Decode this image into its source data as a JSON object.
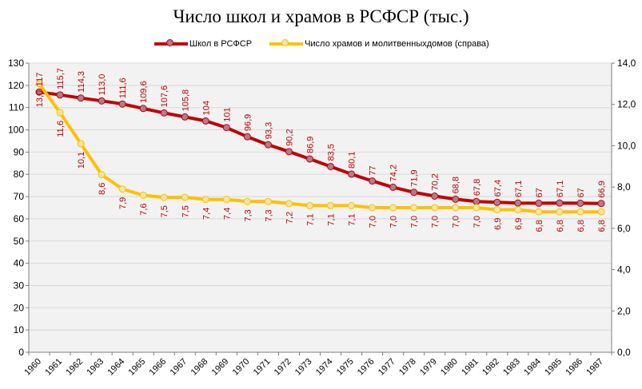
{
  "chart_data": {
    "type": "line",
    "title": "Число школ и храмов в РСФСР (тыс.)",
    "legend_position": "top",
    "grid": true,
    "categories": [
      "1960",
      "1961",
      "1962",
      "1963",
      "1964",
      "1965",
      "1966",
      "1967",
      "1968",
      "1969",
      "1970",
      "1971",
      "1972",
      "1973",
      "1974",
      "1975",
      "1976",
      "1977",
      "1978",
      "1979",
      "1980",
      "1981",
      "1982",
      "1983",
      "1984",
      "1985",
      "1986",
      "1987"
    ],
    "y_left": {
      "min": 0,
      "max": 130,
      "step": 10,
      "ticks": [
        "0",
        "10",
        "20",
        "30",
        "40",
        "50",
        "60",
        "70",
        "80",
        "90",
        "100",
        "110",
        "120",
        "130"
      ]
    },
    "y_right": {
      "min": 0,
      "max": 14,
      "step": 2,
      "ticks": [
        "0,0",
        "2,0",
        "4,0",
        "6,0",
        "8,0",
        "10,0",
        "12,0",
        "14,0"
      ]
    },
    "series": [
      {
        "name": "Школ в РСФСР",
        "axis": "left",
        "color": "#C00000",
        "marker_color": "#B47A90",
        "values": [
          117,
          115.7,
          114.3,
          113.0,
          111.6,
          109.6,
          107.6,
          105.8,
          104,
          101,
          96.9,
          93.3,
          90.2,
          86.9,
          83.5,
          80.1,
          77,
          74.2,
          71.9,
          70.2,
          68.8,
          67.8,
          67.4,
          67.1,
          67,
          67.1,
          67,
          66.9
        ],
        "labels": [
          "117",
          "115,7",
          "114,3",
          "113,0",
          "111,6",
          "109,6",
          "107,6",
          "105,8",
          "104",
          "101",
          "96,9",
          "93,3",
          "90,2",
          "86,9",
          "83,5",
          "80,1",
          "77",
          "74,2",
          "71,9",
          "70,2",
          "68,8",
          "67,8",
          "67,4",
          "67,1",
          "67",
          "67,1",
          "67",
          "66,9"
        ]
      },
      {
        "name": "Число храмов и молитвенныхдомов  (справа)",
        "axis": "right",
        "color": "#FFC000",
        "marker_color": "#F2E6A0",
        "values": [
          13.0,
          11.6,
          10.1,
          8.6,
          7.9,
          7.6,
          7.5,
          7.5,
          7.4,
          7.4,
          7.3,
          7.3,
          7.2,
          7.1,
          7.1,
          7.1,
          7.0,
          7.0,
          7.0,
          7.0,
          7.0,
          7.0,
          6.9,
          6.9,
          6.8,
          6.8,
          6.8,
          6.8
        ],
        "labels": [
          "13,0",
          "11,6",
          "10,1",
          "8,6",
          "7,9",
          "7,6",
          "7,5",
          "7,5",
          "7,4",
          "7,4",
          "7,3",
          "7,3",
          "7,2",
          "7,1",
          "7,1",
          "7,1",
          "7,0",
          "7,0",
          "7,0",
          "7,0",
          "7,0",
          "7,0",
          "6,9",
          "6,9",
          "6,8",
          "6,8",
          "6,8",
          "6,8"
        ]
      }
    ]
  },
  "colors": {
    "plot_background": "#F2F2F2",
    "gridline": "#D9D9D9",
    "data_label": "#C00000"
  }
}
